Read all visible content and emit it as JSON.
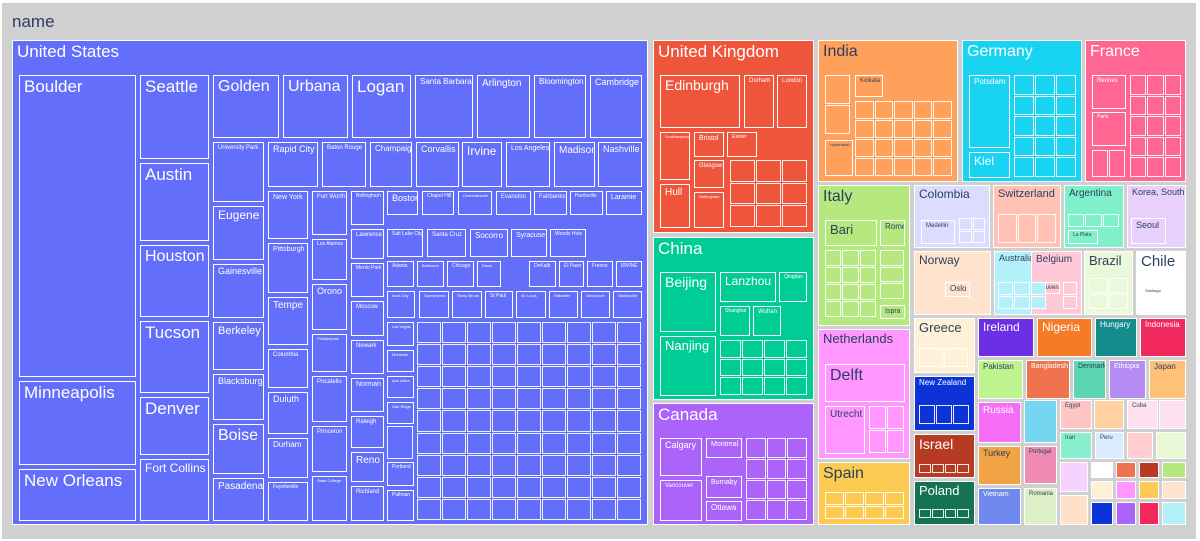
{
  "root": {
    "label": "name"
  },
  "chart_data": {
    "type": "treemap",
    "root": "name",
    "countries": [
      {
        "name": "United States",
        "color": "#636efa",
        "cities": [
          "Boulder",
          "Minneapolis",
          "New Orleans",
          "Seattle",
          "Austin",
          "Houston",
          "Tucson",
          "Denver",
          "Fort Collins",
          "Golden",
          "Eugene",
          "Gainesville",
          "Berkeley",
          "Blacksburg",
          "Boise",
          "Pasadena",
          "Urbana",
          "Logan",
          "Santa Barbara",
          "Arlington",
          "Bloomington",
          "Cambridge",
          "University Park",
          "Rapid City",
          "Baton Rouge",
          "Champaign",
          "Corvallis",
          "Irvine",
          "Los Angeles",
          "Madison",
          "Nashville",
          "New York",
          "Fort Worth",
          "Bellingham",
          "Boston",
          "Chapel Hill",
          "Charlottesville",
          "Evanston",
          "Fairbanks",
          "Huntsville",
          "Laramie",
          "Pittsburgh",
          "Los Alamos",
          "Lawrence",
          "Salt Lake City",
          "Santa Cruz",
          "Socorro",
          "Syracuse",
          "Woods Hole",
          "Tempe",
          "Orono",
          "Menlo Park",
          "Atlanta",
          "Baltimore",
          "Chicago",
          "Davis",
          "DeKalb",
          "El Paso",
          "Fresno",
          "IRVINE",
          "Iowa City",
          "Sacramento",
          "Stony Brook",
          "St Paul",
          "St. Louis",
          "Stillwater",
          "Vancouver",
          "Waltonville",
          "Moscow",
          "Columbia",
          "Philadelphia",
          "Las Vegas",
          "Newark",
          "Montclair",
          "Duluth",
          "Pocatello",
          "Norman",
          "Ann Arbor",
          "Durham",
          "Princeton",
          "Raleigh",
          "Oak Ridge",
          "Reno",
          "Fayetteville",
          "State College",
          "Richland",
          "Portland",
          "Pullman"
        ]
      },
      {
        "name": "United Kingdom",
        "color": "#ef553b",
        "cities": [
          "Edinburgh",
          "Durham",
          "London",
          "Southampton",
          "Bristol",
          "Exeter",
          "Glasgow",
          "Hull",
          "Nottingham"
        ]
      },
      {
        "name": "China",
        "color": "#00cc96",
        "cities": [
          "Beijing",
          "Lanzhou",
          "Qingdao",
          "Nanjing",
          "Shanghai",
          "Wuhan"
        ]
      },
      {
        "name": "Canada",
        "color": "#ab63fa",
        "cities": [
          "Calgary",
          "Montreal",
          "Vancouver",
          "Burnaby",
          "Ottawa"
        ]
      },
      {
        "name": "India",
        "color": "#ffa15a",
        "cities": [
          "Kolkata",
          "Hyderabad"
        ]
      },
      {
        "name": "Italy",
        "color": "#b6e880",
        "cities": [
          "Bari",
          "Rome",
          "Ispra"
        ]
      },
      {
        "name": "Netherlands",
        "color": "#ff97ff",
        "cities": [
          "Delft",
          "Utrecht"
        ]
      },
      {
        "name": "Spain",
        "color": "#fecb52",
        "cities": []
      },
      {
        "name": "Germany",
        "color": "#19d3f3",
        "cities": [
          "Potsdam",
          "Kiel"
        ]
      },
      {
        "name": "France",
        "color": "#ff6692",
        "cities": [
          "Rennes",
          "Paris"
        ]
      },
      {
        "name": "Colombia",
        "color": "#dcdcff",
        "cities": [
          "Medellin"
        ]
      },
      {
        "name": "Switzerland",
        "color": "#ffc2b4",
        "cities": []
      },
      {
        "name": "Argentina",
        "color": "#7ff0c9",
        "cities": [
          "La Plata"
        ]
      },
      {
        "name": "Korea, South",
        "color": "#e8d0fd",
        "cities": [
          "Seoul"
        ]
      },
      {
        "name": "Norway",
        "color": "#ffe3cc",
        "cities": [
          "Oslo"
        ]
      },
      {
        "name": "Australia",
        "color": "#b3f0fa",
        "cities": []
      },
      {
        "name": "Belgium",
        "color": "#ffc9d8",
        "cities": [
          "Leuven"
        ]
      },
      {
        "name": "Brazil",
        "color": "#e9f9d9",
        "cities": []
      },
      {
        "name": "Chile",
        "color": "#ffffff",
        "cities": [
          "Santiago"
        ]
      },
      {
        "name": "Greece",
        "color": "#fff0d8",
        "cities": []
      },
      {
        "name": "Ireland",
        "color": "#6c2fe6",
        "cities": []
      },
      {
        "name": "Nigeria",
        "color": "#f57b29",
        "cities": []
      },
      {
        "name": "Hungary",
        "color": "#158c8c",
        "cities": []
      },
      {
        "name": "Indonesia",
        "color": "#f0285e",
        "cities": []
      },
      {
        "name": "New Zealand",
        "color": "#0c33d8",
        "cities": []
      },
      {
        "name": "Israel",
        "color": "#b73a23",
        "cities": []
      },
      {
        "name": "Poland",
        "color": "#157355",
        "cities": []
      },
      {
        "name": "Pakistan",
        "color": "#bdf48e",
        "cities": []
      },
      {
        "name": "Bangladesh",
        "color": "#f0734f",
        "cities": []
      },
      {
        "name": "Denmark",
        "color": "#5fd6b2",
        "cities": []
      },
      {
        "name": "Ethiopia",
        "color": "#b58cf2",
        "cities": []
      },
      {
        "name": "Japan",
        "color": "#ffc078",
        "cities": []
      },
      {
        "name": "Russia",
        "color": "#f56ef5",
        "cities": []
      },
      {
        "name": "Turkey",
        "color": "#f2a444",
        "cities": []
      },
      {
        "name": "Vietnam",
        "color": "#6f89ef",
        "cities": []
      },
      {
        "name": "Egypt",
        "color": "#ffc4c4",
        "cities": []
      },
      {
        "name": "Iran",
        "color": "#88f0cf",
        "cities": []
      },
      {
        "name": "Peru",
        "color": "#d9ecff",
        "cities": []
      },
      {
        "name": "Cuba",
        "color": "#ffe0ee",
        "cities": []
      },
      {
        "name": "Portugal",
        "color": "#f08cb4",
        "cities": []
      },
      {
        "name": "Romania",
        "color": "#ddf0c8",
        "cities": []
      }
    ]
  }
}
